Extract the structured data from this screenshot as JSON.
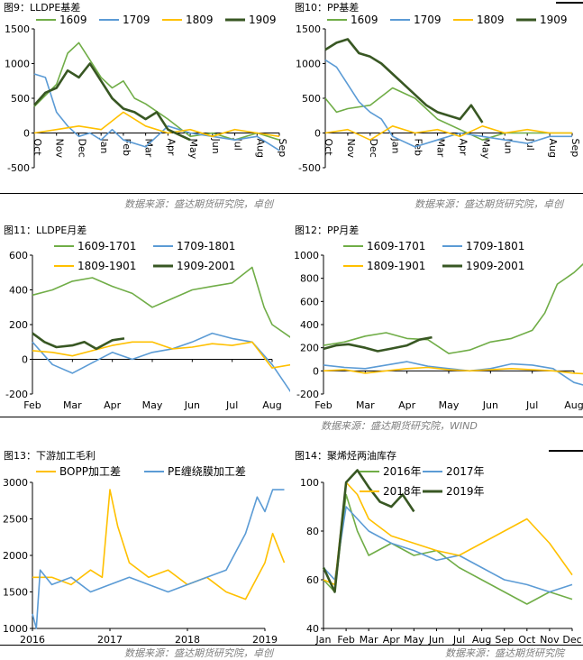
{
  "colors": {
    "s1": "#70AD47",
    "s2": "#5B9BD5",
    "s3": "#FFC000",
    "s4": "#385723"
  },
  "sources": {
    "row1_left": "数据来源：盛达期货研究院，卓创",
    "row1_right": "数据来源：盛达期货研究院，卓创",
    "row2": "数据来源：盛达期货研究院，WIND",
    "row3_left": "数据来源：盛达期货研究院，卓创",
    "row3_right": "数据来源：盛达期货研究院"
  },
  "chart_data": [
    {
      "id": "c9",
      "title": "图9：LLDPE基差",
      "type": "line",
      "ylim": [
        -500,
        1500
      ],
      "yticks": [
        -500,
        0,
        500,
        1000,
        1500
      ],
      "xticks": [
        "Oct",
        "Nov",
        "Dec",
        "Jan",
        "Feb",
        "Mar",
        "Apr",
        "May",
        "Jun",
        "Jul",
        "Aug",
        "Sep"
      ],
      "series": [
        {
          "name": "1609",
          "color": "#70AD47",
          "x": [
            0.0,
            1.0,
            1.5,
            2.0,
            2.5,
            3.0,
            3.5,
            4.0,
            4.5,
            5.0,
            6.0,
            7.0,
            8.0,
            9.0,
            10.0,
            11.0
          ],
          "values": [
            380,
            700,
            1150,
            1300,
            1050,
            800,
            650,
            750,
            500,
            420,
            200,
            -50,
            0,
            -100,
            0,
            -100
          ]
        },
        {
          "name": "1709",
          "color": "#5B9BD5",
          "x": [
            0.0,
            0.5,
            1.0,
            1.5,
            2.0,
            2.5,
            3.0,
            3.5,
            4.0,
            5.0,
            6.0,
            7.0,
            8.0,
            9.0,
            10.0,
            11.0
          ],
          "values": [
            850,
            800,
            300,
            100,
            -50,
            0,
            -100,
            50,
            -100,
            -200,
            100,
            0,
            -50,
            -100,
            -50,
            -250
          ]
        },
        {
          "name": "1809",
          "color": "#FFC000",
          "x": [
            0.0,
            1.0,
            2.0,
            3.0,
            4.0,
            5.0,
            6.0,
            7.0,
            8.0,
            9.0,
            10.0,
            11.0
          ],
          "values": [
            0,
            50,
            100,
            50,
            300,
            100,
            0,
            50,
            -50,
            50,
            0,
            -50
          ]
        },
        {
          "name": "1909",
          "color": "#385723",
          "x": [
            0.0,
            0.5,
            1.0,
            1.5,
            2.0,
            2.5,
            3.0,
            3.5,
            4.0,
            4.5,
            5.0,
            5.5,
            6.0,
            7.0
          ],
          "values": [
            400,
            580,
            650,
            900,
            800,
            1000,
            750,
            500,
            350,
            300,
            200,
            300,
            50,
            -100
          ]
        }
      ]
    },
    {
      "id": "c10",
      "title": "图10：PP基差",
      "type": "line",
      "ylim": [
        -500,
        1500
      ],
      "yticks": [
        -500,
        0,
        500,
        1000,
        1500
      ],
      "xticks": [
        "Oct",
        "Nov",
        "Dec",
        "Jan",
        "Feb",
        "Mar",
        "Apr",
        "May",
        "Jun",
        "Jul",
        "Aug",
        "Sep"
      ],
      "series": [
        {
          "name": "1609",
          "color": "#70AD47",
          "x": [
            0.0,
            0.5,
            1.0,
            2.0,
            3.0,
            4.0,
            5.0,
            6.0,
            7.0,
            8.0,
            9.0,
            10.0,
            11.0
          ],
          "values": [
            500,
            300,
            350,
            400,
            650,
            500,
            200,
            50,
            -100,
            0,
            0,
            0,
            0
          ]
        },
        {
          "name": "1709",
          "color": "#5B9BD5",
          "x": [
            0.0,
            0.5,
            1.0,
            1.5,
            2.0,
            2.5,
            3.0,
            4.0,
            5.0,
            6.0,
            7.0,
            8.0,
            9.0,
            10.0,
            11.0
          ],
          "values": [
            1050,
            950,
            700,
            450,
            300,
            200,
            -50,
            -200,
            -100,
            0,
            -50,
            -100,
            -150,
            -50,
            -50
          ]
        },
        {
          "name": "1809",
          "color": "#FFC000",
          "x": [
            0.0,
            1.0,
            2.0,
            3.0,
            4.0,
            5.0,
            6.0,
            7.0,
            8.0,
            9.0,
            10.0,
            11.0
          ],
          "values": [
            0,
            50,
            -100,
            100,
            0,
            50,
            -50,
            100,
            0,
            50,
            0,
            0
          ]
        },
        {
          "name": "1909",
          "color": "#385723",
          "x": [
            0.0,
            0.5,
            1.0,
            1.5,
            2.0,
            2.5,
            3.0,
            3.5,
            4.0,
            4.5,
            5.0,
            6.0,
            6.5,
            7.0
          ],
          "values": [
            1200,
            1300,
            1350,
            1150,
            1100,
            1000,
            850,
            700,
            550,
            400,
            300,
            200,
            400,
            150
          ]
        }
      ]
    },
    {
      "id": "c11",
      "title": "图11：LLDPE月差",
      "type": "line",
      "ylim": [
        -200,
        600
      ],
      "yticks": [
        -200,
        0,
        200,
        400,
        600
      ],
      "xticks": [
        "Feb",
        "Mar",
        "Apr",
        "May",
        "Jun",
        "Jul",
        "Aug"
      ],
      "series": [
        {
          "name": "1609-1701",
          "color": "#70AD47",
          "x": [
            0.0,
            0.5,
            1.0,
            1.5,
            2.0,
            2.5,
            3.0,
            3.5,
            4.0,
            4.5,
            5.0,
            5.5,
            5.8,
            6.0,
            6.5,
            7.0
          ],
          "values": [
            370,
            400,
            450,
            470,
            420,
            380,
            300,
            350,
            400,
            420,
            440,
            530,
            300,
            200,
            120,
            270
          ]
        },
        {
          "name": "1709-1801",
          "color": "#5B9BD5",
          "x": [
            0.0,
            0.5,
            1.0,
            1.5,
            2.0,
            2.5,
            3.0,
            3.5,
            4.0,
            4.5,
            5.0,
            5.5,
            6.0,
            6.5
          ],
          "values": [
            100,
            -30,
            -80,
            -20,
            40,
            0,
            40,
            60,
            100,
            150,
            120,
            100,
            -30,
            -200
          ]
        },
        {
          "name": "1809-1901",
          "color": "#FFC000",
          "x": [
            0.0,
            0.5,
            1.0,
            1.5,
            2.0,
            2.5,
            3.0,
            3.5,
            4.0,
            4.5,
            5.0,
            5.5,
            6.0,
            6.5,
            7.0
          ],
          "values": [
            50,
            40,
            20,
            50,
            80,
            100,
            100,
            60,
            70,
            90,
            80,
            100,
            -50,
            -30,
            70
          ]
        },
        {
          "name": "1909-2001",
          "color": "#385723",
          "x": [
            0.0,
            0.3,
            0.6,
            1.0,
            1.3,
            1.6,
            2.0,
            2.3
          ],
          "values": [
            150,
            100,
            70,
            80,
            100,
            60,
            110,
            120
          ]
        }
      ]
    },
    {
      "id": "c12",
      "title": "图12：PP月差",
      "type": "line",
      "ylim": [
        -200,
        1000
      ],
      "yticks": [
        -200,
        0,
        200,
        400,
        600,
        800,
        1000
      ],
      "xticks": [
        "Feb",
        "Mar",
        "Apr",
        "May",
        "Jun",
        "Jul",
        "Aug"
      ],
      "series": [
        {
          "name": "1609-1701",
          "color": "#70AD47",
          "x": [
            0.0,
            0.5,
            1.0,
            1.5,
            2.0,
            2.5,
            3.0,
            3.5,
            4.0,
            4.5,
            5.0,
            5.3,
            5.6,
            6.0,
            6.3,
            6.6,
            7.0,
            7.3,
            7.5
          ],
          "values": [
            220,
            250,
            300,
            330,
            280,
            270,
            150,
            180,
            250,
            280,
            350,
            500,
            750,
            850,
            950,
            800,
            900,
            750,
            1000
          ]
        },
        {
          "name": "1709-1801",
          "color": "#5B9BD5",
          "x": [
            0.0,
            0.5,
            1.0,
            1.5,
            2.0,
            2.5,
            3.0,
            3.5,
            4.0,
            4.5,
            5.0,
            5.5,
            6.0,
            6.5,
            7.0
          ],
          "values": [
            50,
            30,
            20,
            50,
            80,
            40,
            20,
            0,
            20,
            60,
            50,
            20,
            -100,
            -150,
            -200
          ]
        },
        {
          "name": "1809-1901",
          "color": "#FFC000",
          "x": [
            0.0,
            0.5,
            1.0,
            1.5,
            2.0,
            2.5,
            3.0,
            3.5,
            4.0,
            4.5,
            5.0,
            5.5,
            6.0,
            6.5,
            7.0,
            7.5
          ],
          "values": [
            0,
            10,
            -20,
            0,
            20,
            30,
            10,
            0,
            10,
            20,
            10,
            0,
            -20,
            -30,
            -20,
            70
          ]
        },
        {
          "name": "1909-2001",
          "color": "#385723",
          "x": [
            0.0,
            0.3,
            0.6,
            1.0,
            1.3,
            1.6,
            2.0,
            2.3,
            2.6
          ],
          "values": [
            190,
            220,
            230,
            200,
            170,
            190,
            220,
            270,
            290
          ]
        }
      ]
    },
    {
      "id": "c13",
      "title": "图13：下游加工毛利",
      "type": "line",
      "ylim": [
        1000,
        3000
      ],
      "yticks": [
        1000,
        1500,
        2000,
        2500,
        3000
      ],
      "xticks": [
        "2016",
        "2017",
        "2018",
        "2019"
      ],
      "series": [
        {
          "name": "BOPP加工差",
          "color": "#FFC000",
          "x": [
            0.0,
            0.25,
            0.5,
            0.75,
            0.9,
            1.0,
            1.1,
            1.25,
            1.5,
            1.75,
            2.0,
            2.25,
            2.5,
            2.75,
            3.0,
            3.1,
            3.25
          ],
          "values": [
            1700,
            1700,
            1600,
            1800,
            1700,
            2900,
            2400,
            1900,
            1700,
            1800,
            1600,
            1700,
            1500,
            1400,
            1900,
            2300,
            1900
          ]
        },
        {
          "name": "PE缠绕膜加工差",
          "color": "#5B9BD5",
          "x": [
            0.0,
            0.05,
            0.1,
            0.25,
            0.5,
            0.75,
            1.0,
            1.25,
            1.5,
            1.75,
            2.0,
            2.25,
            2.5,
            2.75,
            2.9,
            3.0,
            3.1,
            3.25
          ],
          "values": [
            1200,
            1000,
            1800,
            1600,
            1700,
            1500,
            1600,
            1700,
            1600,
            1500,
            1600,
            1700,
            1800,
            2300,
            2800,
            2600,
            2900,
            2900
          ]
        }
      ]
    },
    {
      "id": "c14",
      "title": "图14：聚烯烃两油库存",
      "type": "line",
      "ylim": [
        40,
        100
      ],
      "yticks": [
        40,
        60,
        80,
        100
      ],
      "xticks": [
        "Jan",
        "Feb",
        "Mar",
        "Apr",
        "May",
        "Jun",
        "Jul",
        "Aug",
        "Sep",
        "Oct",
        "Nov",
        "Dec"
      ],
      "series": [
        {
          "name": "2016年",
          "color": "#70AD47",
          "x": [
            0.0,
            0.5,
            1.0,
            1.5,
            2.0,
            3.0,
            4.0,
            5.0,
            6.0,
            7.0,
            8.0,
            9.0,
            10.0,
            11.0
          ],
          "values": [
            60,
            55,
            95,
            80,
            70,
            75,
            70,
            72,
            65,
            60,
            55,
            50,
            55,
            52
          ]
        },
        {
          "name": "2017年",
          "color": "#5B9BD5",
          "x": [
            0.0,
            0.5,
            1.0,
            1.5,
            2.0,
            3.0,
            4.0,
            5.0,
            6.0,
            7.0,
            8.0,
            9.0,
            10.0,
            11.0
          ],
          "values": [
            65,
            60,
            90,
            85,
            80,
            75,
            72,
            68,
            70,
            65,
            60,
            58,
            55,
            58
          ]
        },
        {
          "name": "2018年",
          "color": "#FFC000",
          "x": [
            0.0,
            0.5,
            1.0,
            1.5,
            2.0,
            3.0,
            4.0,
            5.0,
            6.0,
            7.0,
            8.0,
            9.0,
            10.0,
            11.0
          ],
          "values": [
            60,
            58,
            100,
            95,
            85,
            78,
            75,
            72,
            70,
            75,
            80,
            85,
            75,
            62
          ]
        },
        {
          "name": "2019年",
          "color": "#385723",
          "x": [
            0.0,
            0.5,
            1.0,
            1.5,
            2.0,
            2.5,
            3.0,
            3.5,
            4.0
          ],
          "values": [
            65,
            55,
            100,
            105,
            98,
            92,
            90,
            95,
            88
          ]
        }
      ]
    }
  ]
}
